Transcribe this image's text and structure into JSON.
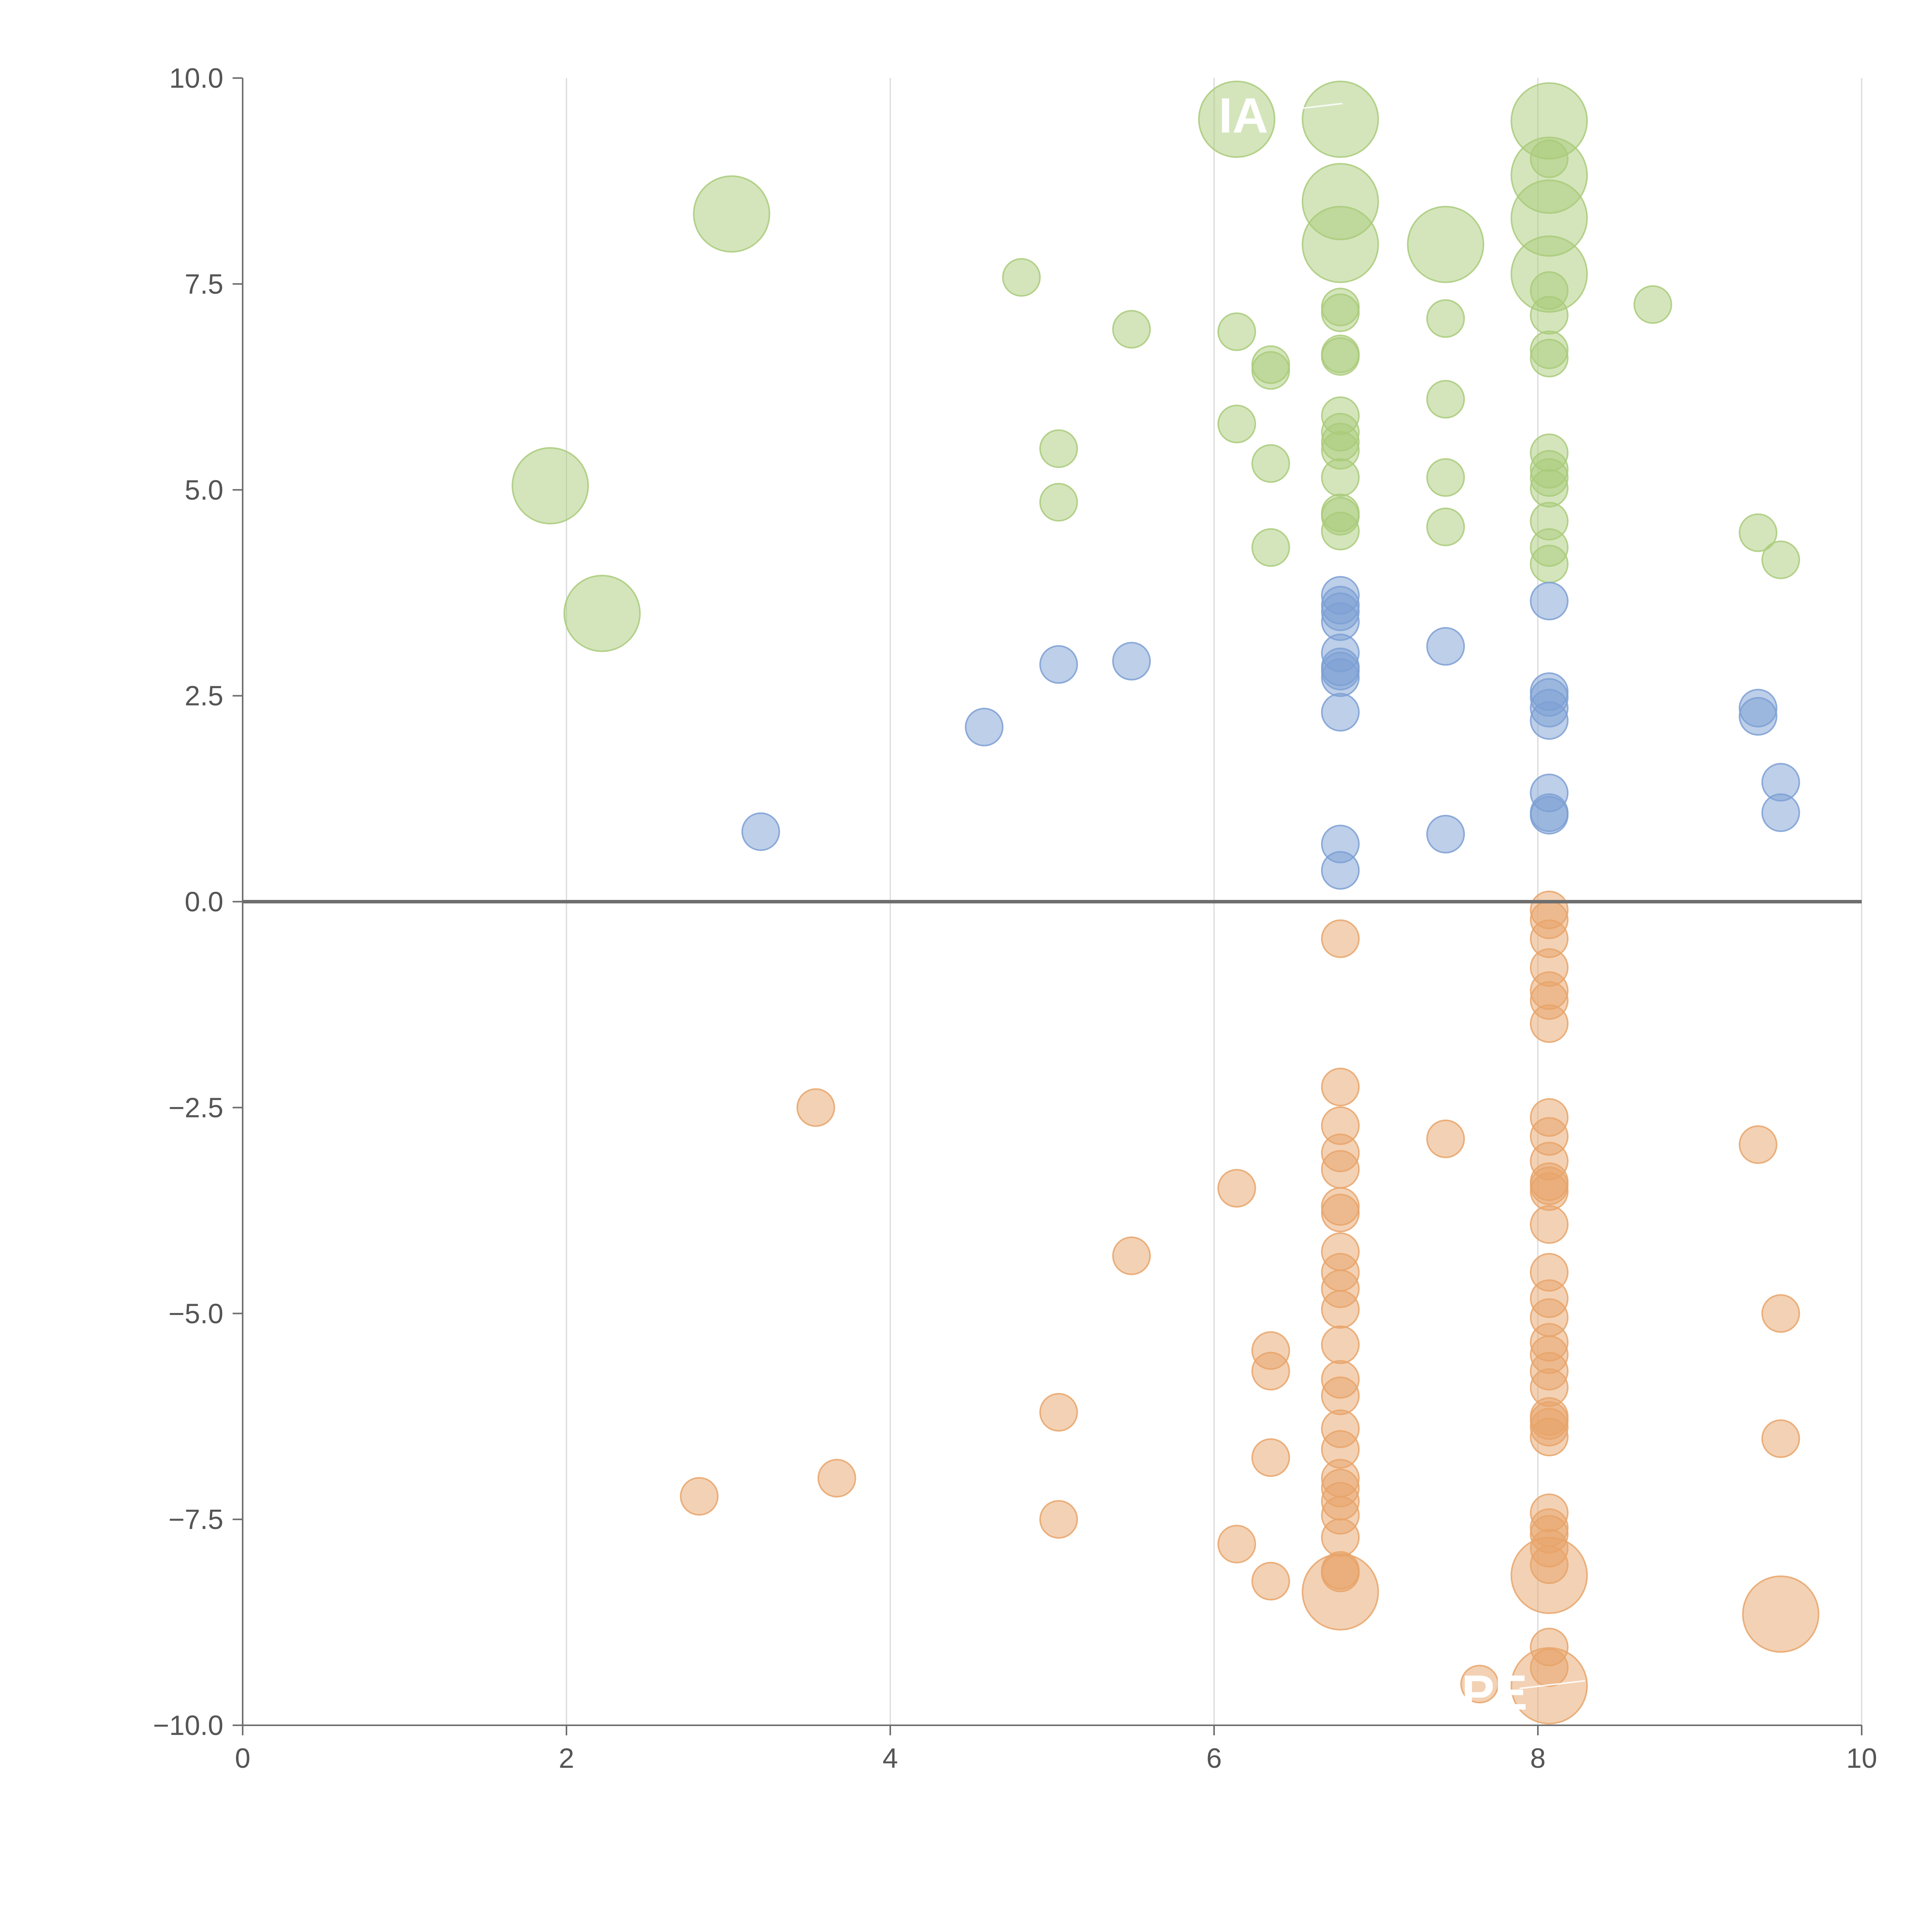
{
  "chart_data": {
    "type": "scatter",
    "title": "",
    "xlabel": "",
    "ylabel": "",
    "xlim": [
      0,
      10
    ],
    "ylim": [
      -10,
      10
    ],
    "grid": "vertical lines at x ticks",
    "xticks": [
      "0",
      "2",
      "4",
      "6",
      "8",
      "10"
    ],
    "yticks": [
      "10.0",
      "7.5",
      "5.0",
      "2.5",
      "0.0",
      "−2.5",
      "−5.0",
      "−7.5",
      "−10.0"
    ],
    "colors": {
      "green": "#a9cb7a",
      "blue": "#7c9fd4",
      "orange": "#e8a46a",
      "axis": "#6e6e6e",
      "grid": "#d9d9d9"
    },
    "annotations": [
      {
        "text": "IA",
        "x": 6.1,
        "y": 9.55
      },
      {
        "text": "PE",
        "x": 7.6,
        "y": -9.6
      }
    ],
    "series": [
      {
        "name": "green",
        "color": "#a9cb7a",
        "points": [
          [
            3.02,
            8.35,
            2
          ],
          [
            1.9,
            5.05,
            2
          ],
          [
            2.22,
            3.5,
            2
          ],
          [
            6.14,
            9.5,
            2
          ],
          [
            6.78,
            9.5,
            2
          ],
          [
            8.07,
            9.48,
            2
          ],
          [
            8.07,
            9.02,
            1
          ],
          [
            8.07,
            8.82,
            2
          ],
          [
            6.78,
            8.5,
            2
          ],
          [
            8.07,
            8.3,
            2
          ],
          [
            6.78,
            7.98,
            2
          ],
          [
            7.43,
            7.98,
            2
          ],
          [
            8.07,
            7.62,
            2
          ],
          [
            4.81,
            7.58,
            1
          ],
          [
            8.07,
            7.42,
            1
          ],
          [
            8.71,
            7.25,
            1
          ],
          [
            6.78,
            7.22,
            1
          ],
          [
            6.78,
            7.15,
            1
          ],
          [
            8.07,
            7.12,
            1
          ],
          [
            7.43,
            7.08,
            1
          ],
          [
            5.49,
            6.95,
            1
          ],
          [
            6.14,
            6.92,
            1
          ],
          [
            8.07,
            6.7,
            1
          ],
          [
            6.78,
            6.65,
            1
          ],
          [
            6.78,
            6.62,
            1
          ],
          [
            8.07,
            6.6,
            1
          ],
          [
            6.35,
            6.52,
            1
          ],
          [
            6.35,
            6.45,
            1
          ],
          [
            7.43,
            6.1,
            1
          ],
          [
            6.78,
            5.9,
            1
          ],
          [
            6.14,
            5.8,
            1
          ],
          [
            6.78,
            5.7,
            1
          ],
          [
            6.78,
            5.58,
            1
          ],
          [
            5.04,
            5.5,
            1
          ],
          [
            6.78,
            5.48,
            1
          ],
          [
            8.07,
            5.45,
            1
          ],
          [
            6.35,
            5.32,
            1
          ],
          [
            8.07,
            5.25,
            1
          ],
          [
            8.07,
            5.15,
            1
          ],
          [
            6.78,
            5.15,
            1
          ],
          [
            7.43,
            5.15,
            1
          ],
          [
            8.07,
            5.02,
            1
          ],
          [
            5.04,
            4.85,
            1
          ],
          [
            6.78,
            4.72,
            1
          ],
          [
            6.78,
            4.68,
            1
          ],
          [
            8.07,
            4.62,
            1
          ],
          [
            7.43,
            4.55,
            1
          ],
          [
            6.78,
            4.5,
            1
          ],
          [
            9.36,
            4.48,
            1
          ],
          [
            8.07,
            4.3,
            1
          ],
          [
            6.35,
            4.3,
            1
          ],
          [
            9.5,
            4.15,
            1
          ],
          [
            8.07,
            4.1,
            1
          ]
        ]
      },
      {
        "name": "blue",
        "color": "#7c9fd4",
        "points": [
          [
            6.78,
            3.72,
            1
          ],
          [
            8.07,
            3.65,
            1
          ],
          [
            6.78,
            3.6,
            1
          ],
          [
            6.78,
            3.52,
            1
          ],
          [
            6.78,
            3.4,
            1
          ],
          [
            7.43,
            3.1,
            1
          ],
          [
            6.78,
            3.02,
            1
          ],
          [
            5.49,
            2.92,
            1
          ],
          [
            5.04,
            2.88,
            1
          ],
          [
            6.78,
            2.85,
            1
          ],
          [
            6.78,
            2.8,
            1
          ],
          [
            6.78,
            2.72,
            1
          ],
          [
            8.07,
            2.55,
            1
          ],
          [
            8.07,
            2.48,
            1
          ],
          [
            9.36,
            2.35,
            1
          ],
          [
            8.07,
            2.35,
            1
          ],
          [
            6.78,
            2.3,
            1
          ],
          [
            9.36,
            2.25,
            1
          ],
          [
            8.07,
            2.2,
            1
          ],
          [
            4.58,
            2.12,
            1
          ],
          [
            9.5,
            1.45,
            1
          ],
          [
            8.07,
            1.32,
            1
          ],
          [
            9.5,
            1.08,
            1
          ],
          [
            8.07,
            1.08,
            1
          ],
          [
            8.07,
            1.05,
            1
          ],
          [
            3.2,
            0.85,
            1
          ],
          [
            7.43,
            0.82,
            1
          ],
          [
            6.78,
            0.7,
            1
          ],
          [
            6.78,
            0.38,
            1
          ]
        ]
      },
      {
        "name": "orange",
        "color": "#e8a46a",
        "points": [
          [
            8.07,
            -0.1,
            1
          ],
          [
            8.07,
            -0.22,
            1
          ],
          [
            8.07,
            -0.45,
            1
          ],
          [
            6.78,
            -0.45,
            1
          ],
          [
            8.07,
            -0.8,
            1
          ],
          [
            8.07,
            -1.08,
            1
          ],
          [
            8.07,
            -1.2,
            1
          ],
          [
            8.07,
            -1.48,
            1
          ],
          [
            6.78,
            -2.25,
            1
          ],
          [
            3.54,
            -2.5,
            1
          ],
          [
            8.07,
            -2.62,
            1
          ],
          [
            6.78,
            -2.72,
            1
          ],
          [
            8.07,
            -2.85,
            1
          ],
          [
            7.43,
            -2.88,
            1
          ],
          [
            9.36,
            -2.95,
            1
          ],
          [
            6.78,
            -3.05,
            1
          ],
          [
            8.07,
            -3.15,
            1
          ],
          [
            6.78,
            -3.25,
            1
          ],
          [
            8.07,
            -3.4,
            1
          ],
          [
            8.07,
            -3.45,
            1
          ],
          [
            6.14,
            -3.48,
            1
          ],
          [
            8.07,
            -3.52,
            1
          ],
          [
            6.78,
            -3.7,
            1
          ],
          [
            6.78,
            -3.78,
            1
          ],
          [
            8.07,
            -3.92,
            1
          ],
          [
            6.78,
            -4.25,
            1
          ],
          [
            5.49,
            -4.3,
            1
          ],
          [
            6.78,
            -4.5,
            1
          ],
          [
            8.07,
            -4.5,
            1
          ],
          [
            6.78,
            -4.7,
            1
          ],
          [
            8.07,
            -4.82,
            1
          ],
          [
            6.78,
            -4.95,
            1
          ],
          [
            9.5,
            -5.0,
            1
          ],
          [
            8.07,
            -5.05,
            1
          ],
          [
            8.07,
            -5.35,
            1
          ],
          [
            6.78,
            -5.38,
            1
          ],
          [
            6.35,
            -5.45,
            1
          ],
          [
            8.07,
            -5.5,
            1
          ],
          [
            6.35,
            -5.7,
            1
          ],
          [
            8.07,
            -5.7,
            1
          ],
          [
            6.78,
            -5.8,
            1
          ],
          [
            8.07,
            -5.9,
            1
          ],
          [
            6.78,
            -6.0,
            1
          ],
          [
            5.04,
            -6.2,
            1
          ],
          [
            8.07,
            -6.25,
            1
          ],
          [
            8.07,
            -6.3,
            1
          ],
          [
            8.07,
            -6.38,
            1
          ],
          [
            6.78,
            -6.4,
            1
          ],
          [
            8.07,
            -6.5,
            1
          ],
          [
            9.5,
            -6.52,
            1
          ],
          [
            6.78,
            -6.65,
            1
          ],
          [
            6.35,
            -6.75,
            1
          ],
          [
            3.67,
            -7.0,
            1
          ],
          [
            6.78,
            -7.0,
            1
          ],
          [
            6.78,
            -7.12,
            1
          ],
          [
            2.82,
            -7.22,
            1
          ],
          [
            6.78,
            -7.28,
            1
          ],
          [
            6.78,
            -7.45,
            1
          ],
          [
            8.07,
            -7.42,
            1
          ],
          [
            5.04,
            -7.5,
            1
          ],
          [
            8.07,
            -7.6,
            1
          ],
          [
            8.07,
            -7.68,
            1
          ],
          [
            6.78,
            -7.72,
            1
          ],
          [
            6.14,
            -7.8,
            1
          ],
          [
            8.07,
            -7.85,
            1
          ],
          [
            8.07,
            -8.05,
            1
          ],
          [
            6.78,
            -8.12,
            1
          ],
          [
            6.78,
            -8.15,
            1
          ],
          [
            8.07,
            -8.18,
            2
          ],
          [
            6.35,
            -8.25,
            1
          ],
          [
            6.78,
            -8.38,
            2
          ],
          [
            9.5,
            -8.65,
            2
          ],
          [
            8.07,
            -9.05,
            1
          ],
          [
            8.07,
            -9.3,
            1
          ],
          [
            7.64,
            -9.5,
            1
          ],
          [
            8.07,
            -9.52,
            2
          ]
        ]
      }
    ]
  }
}
